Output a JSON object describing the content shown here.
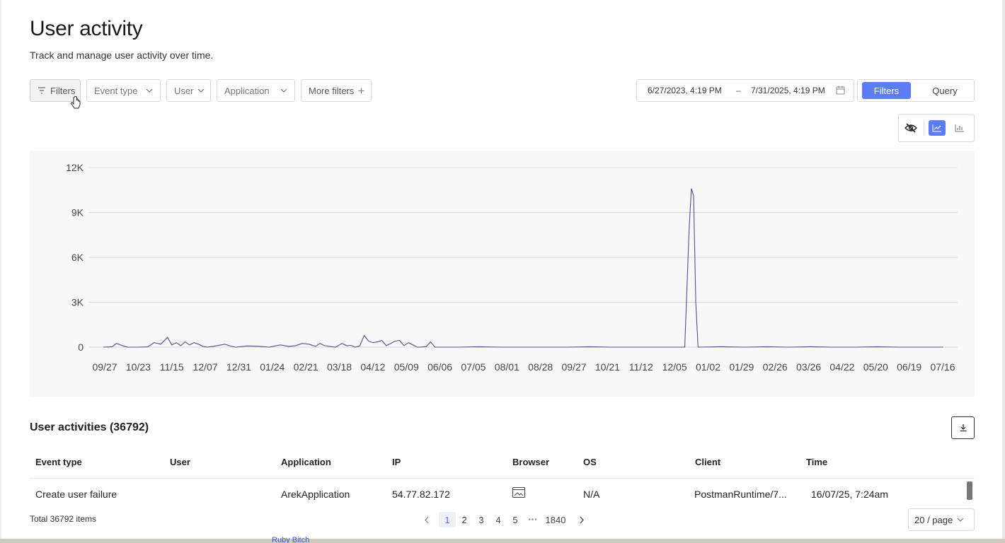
{
  "header": {
    "title": "User activity",
    "subtitle": "Track and manage user activity over time."
  },
  "filters": {
    "filters_label": "Filters",
    "event_type_label": "Event type",
    "user_label": "User",
    "application_label": "Application",
    "more_filters_label": "More filters"
  },
  "date_range": {
    "start": "6/27/2023, 4:19 PM",
    "separator": "–",
    "end": "7/31/2025, 4:19 PM"
  },
  "mode_toggle": {
    "filters_label": "Filters",
    "query_label": "Query",
    "active": "Filters"
  },
  "view_toggle": {
    "icons": [
      "eye-off-icon",
      "line-chart-icon",
      "bar-chart-icon"
    ],
    "active": "line-chart-icon"
  },
  "colors": {
    "accent": "#5b7cf5",
    "line": "#5a4a8a"
  },
  "chart_data": {
    "type": "line",
    "y_ticks": [
      "12K",
      "9K",
      "6K",
      "3K",
      "0"
    ],
    "ylim": [
      0,
      12000
    ],
    "x_tick_labels": [
      "09/27",
      "10/23",
      "11/15",
      "12/07",
      "12/31",
      "01/24",
      "02/21",
      "03/18",
      "04/12",
      "05/09",
      "06/06",
      "07/05",
      "08/01",
      "08/28",
      "09/27",
      "10/21",
      "11/12",
      "12/05",
      "01/02",
      "01/29",
      "02/26",
      "03/26",
      "04/22",
      "05/20",
      "06/19",
      "07/16"
    ],
    "grid": true,
    "series": [
      {
        "points": [
          [
            0,
            0
          ],
          [
            0.04,
            30
          ],
          [
            0.06,
            250
          ],
          [
            0.09,
            80
          ],
          [
            0.11,
            0
          ],
          [
            0.16,
            0
          ],
          [
            0.2,
            20
          ],
          [
            0.23,
            300
          ],
          [
            0.26,
            200
          ],
          [
            0.29,
            650
          ],
          [
            0.31,
            150
          ],
          [
            0.33,
            300
          ],
          [
            0.35,
            100
          ],
          [
            0.37,
            350
          ],
          [
            0.39,
            150
          ],
          [
            0.41,
            300
          ],
          [
            0.43,
            200
          ],
          [
            0.45,
            50
          ],
          [
            0.47,
            0
          ],
          [
            0.5,
            60
          ],
          [
            0.55,
            200
          ],
          [
            0.58,
            50
          ],
          [
            0.6,
            0
          ],
          [
            0.65,
            80
          ],
          [
            0.7,
            60
          ],
          [
            0.75,
            0
          ],
          [
            0.8,
            150
          ],
          [
            0.84,
            50
          ],
          [
            0.87,
            100
          ],
          [
            0.9,
            250
          ],
          [
            0.93,
            200
          ],
          [
            0.96,
            50
          ],
          [
            0.98,
            250
          ],
          [
            1.0,
            100
          ],
          [
            1.05,
            0
          ],
          [
            1.08,
            250
          ],
          [
            1.1,
            100
          ],
          [
            1.12,
            120
          ],
          [
            1.14,
            0
          ],
          [
            1.16,
            80
          ],
          [
            1.18,
            780
          ],
          [
            1.2,
            400
          ],
          [
            1.22,
            300
          ],
          [
            1.24,
            350
          ],
          [
            1.26,
            450
          ],
          [
            1.28,
            100
          ],
          [
            1.3,
            250
          ],
          [
            1.32,
            400
          ],
          [
            1.34,
            450
          ],
          [
            1.36,
            100
          ],
          [
            1.38,
            300
          ],
          [
            1.4,
            150
          ],
          [
            1.42,
            0
          ],
          [
            1.46,
            30
          ],
          [
            1.48,
            350
          ],
          [
            1.5,
            0
          ],
          [
            1.6,
            0
          ],
          [
            1.7,
            30
          ],
          [
            1.8,
            0
          ],
          [
            1.9,
            0
          ],
          [
            2.0,
            0
          ],
          [
            2.1,
            0
          ],
          [
            2.2,
            30
          ],
          [
            2.3,
            0
          ],
          [
            2.4,
            0
          ],
          [
            2.5,
            0
          ],
          [
            2.6,
            0
          ],
          [
            2.63,
            0
          ],
          [
            2.65,
            8000
          ],
          [
            2.66,
            10600
          ],
          [
            2.67,
            10100
          ],
          [
            2.68,
            3000
          ],
          [
            2.69,
            0
          ],
          [
            2.8,
            30
          ],
          [
            2.9,
            0
          ],
          [
            3.0,
            30
          ],
          [
            3.1,
            0
          ],
          [
            3.2,
            30
          ],
          [
            3.3,
            0
          ],
          [
            3.4,
            0
          ],
          [
            3.5,
            30
          ],
          [
            3.6,
            0
          ],
          [
            3.7,
            0
          ],
          [
            3.8,
            0
          ]
        ]
      }
    ]
  },
  "table": {
    "title": "User activities (36792)",
    "columns": [
      "Event type",
      "User",
      "Application",
      "IP",
      "Browser",
      "OS",
      "Client",
      "Time"
    ],
    "rows": [
      {
        "event_type": "Create user failure",
        "user": "",
        "application": "ArekApplication",
        "ip": "54.77.82.172",
        "browser_icon": "browser-image-icon",
        "os": "N/A",
        "client": "PostmanRuntime/7...",
        "time": "16/07/25, 7:24am"
      }
    ]
  },
  "pagination": {
    "total": "Total 36792 items",
    "pages": [
      "1",
      "2",
      "3",
      "4",
      "5"
    ],
    "ellipsis": "•••",
    "last": "1840",
    "current": "1",
    "page_size": "20 / page"
  },
  "background_peek": "Ruby Bitch"
}
